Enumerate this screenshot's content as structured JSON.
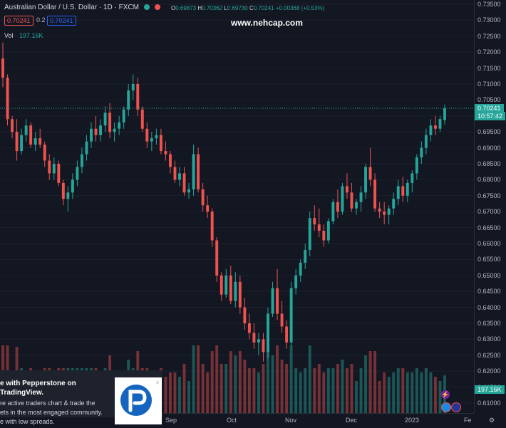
{
  "header": {
    "title": "Australian Dollar / U.S. Dollar · 1D · FXCM",
    "ohlc": {
      "O": "0.69873",
      "H": "0.70362",
      "L": "0.69730",
      "C": "0.70241",
      "change": "+0.00368 (+0.53%)"
    },
    "sell_price": "0.70241",
    "spread": "0.2",
    "buy_price": "0.70241"
  },
  "volume_legend": {
    "label": "Vol",
    "value": "197.16K"
  },
  "watermark": "www.nehcap.com",
  "price_axis": {
    "ticks": [
      "0.73500",
      "0.73000",
      "0.72500",
      "0.72000",
      "0.71500",
      "0.71000",
      "0.70500",
      "0.70000",
      "0.69500",
      "0.69000",
      "0.68500",
      "0.68000",
      "0.67500",
      "0.67000",
      "0.66500",
      "0.66000",
      "0.65500",
      "0.65000",
      "0.64500",
      "0.64000",
      "0.63500",
      "0.63000",
      "0.62500",
      "0.62000",
      "0.61500",
      "0.61000"
    ],
    "current_price_tag": "0.70241",
    "countdown_tag": "10:57:42",
    "volume_tag": "197.16K"
  },
  "time_axis": {
    "labels": [
      "Sep",
      "Oct",
      "Nov",
      "Dec",
      "2023",
      "Fe"
    ]
  },
  "promo": {
    "headline": "e with Pepperstone on TradingView.",
    "line1": "re active traders chart & trade the",
    "line2": "ets in the most engaged community.",
    "line3": "e with low spreads.",
    "close": "×"
  },
  "colors": {
    "up": "#26a69a",
    "down": "#ef5350",
    "background": "#131722",
    "accent": "#2962ff"
  },
  "chart_data": {
    "type": "candlestick",
    "symbol": "AUDUSD",
    "interval": "1D",
    "ylim": [
      0.61,
      0.735
    ],
    "x_labels": [
      "Sep",
      "Oct",
      "Nov",
      "Dec",
      "2023",
      "Fe"
    ],
    "candles": [
      [
        0.718,
        0.723,
        0.709,
        0.712
      ],
      [
        0.712,
        0.713,
        0.697,
        0.699
      ],
      [
        0.699,
        0.7,
        0.693,
        0.695
      ],
      [
        0.695,
        0.699,
        0.686,
        0.689
      ],
      [
        0.689,
        0.696,
        0.688,
        0.694
      ],
      [
        0.694,
        0.699,
        0.692,
        0.697
      ],
      [
        0.697,
        0.698,
        0.69,
        0.691
      ],
      [
        0.691,
        0.695,
        0.689,
        0.693
      ],
      [
        0.693,
        0.696,
        0.69,
        0.691
      ],
      [
        0.691,
        0.692,
        0.684,
        0.686
      ],
      [
        0.686,
        0.688,
        0.68,
        0.682
      ],
      [
        0.682,
        0.687,
        0.68,
        0.685
      ],
      [
        0.685,
        0.686,
        0.678,
        0.679
      ],
      [
        0.679,
        0.68,
        0.672,
        0.674
      ],
      [
        0.674,
        0.678,
        0.67,
        0.676
      ],
      [
        0.676,
        0.682,
        0.674,
        0.68
      ],
      [
        0.68,
        0.686,
        0.678,
        0.684
      ],
      [
        0.684,
        0.69,
        0.682,
        0.688
      ],
      [
        0.688,
        0.694,
        0.686,
        0.692
      ],
      [
        0.692,
        0.698,
        0.69,
        0.696
      ],
      [
        0.696,
        0.7,
        0.692,
        0.694
      ],
      [
        0.694,
        0.699,
        0.692,
        0.697
      ],
      [
        0.697,
        0.703,
        0.695,
        0.701
      ],
      [
        0.701,
        0.704,
        0.693,
        0.695
      ],
      [
        0.695,
        0.698,
        0.692,
        0.696
      ],
      [
        0.696,
        0.7,
        0.694,
        0.698
      ],
      [
        0.698,
        0.703,
        0.696,
        0.702
      ],
      [
        0.702,
        0.71,
        0.7,
        0.708
      ],
      [
        0.708,
        0.713,
        0.705,
        0.71
      ],
      [
        0.71,
        0.712,
        0.7,
        0.702
      ],
      [
        0.702,
        0.703,
        0.695,
        0.696
      ],
      [
        0.696,
        0.698,
        0.69,
        0.692
      ],
      [
        0.692,
        0.695,
        0.689,
        0.693
      ],
      [
        0.693,
        0.696,
        0.691,
        0.694
      ],
      [
        0.694,
        0.696,
        0.688,
        0.689
      ],
      [
        0.689,
        0.692,
        0.686,
        0.688
      ],
      [
        0.688,
        0.689,
        0.682,
        0.684
      ],
      [
        0.684,
        0.686,
        0.679,
        0.68
      ],
      [
        0.68,
        0.684,
        0.678,
        0.682
      ],
      [
        0.682,
        0.684,
        0.675,
        0.676
      ],
      [
        0.676,
        0.679,
        0.674,
        0.677
      ],
      [
        0.677,
        0.691,
        0.675,
        0.688
      ],
      [
        0.688,
        0.69,
        0.676,
        0.677
      ],
      [
        0.677,
        0.679,
        0.67,
        0.672
      ],
      [
        0.672,
        0.675,
        0.668,
        0.67
      ],
      [
        0.67,
        0.671,
        0.659,
        0.661
      ],
      [
        0.661,
        0.662,
        0.648,
        0.65
      ],
      [
        0.65,
        0.651,
        0.642,
        0.644
      ],
      [
        0.644,
        0.652,
        0.643,
        0.65
      ],
      [
        0.65,
        0.653,
        0.641,
        0.642
      ],
      [
        0.642,
        0.651,
        0.64,
        0.648
      ],
      [
        0.648,
        0.65,
        0.638,
        0.64
      ],
      [
        0.64,
        0.643,
        0.633,
        0.635
      ],
      [
        0.635,
        0.638,
        0.63,
        0.632
      ],
      [
        0.632,
        0.635,
        0.627,
        0.629
      ],
      [
        0.629,
        0.632,
        0.625,
        0.63
      ],
      [
        0.63,
        0.632,
        0.623,
        0.626
      ],
      [
        0.626,
        0.64,
        0.624,
        0.638
      ],
      [
        0.638,
        0.648,
        0.637,
        0.646
      ],
      [
        0.646,
        0.652,
        0.636,
        0.638
      ],
      [
        0.638,
        0.642,
        0.632,
        0.634
      ],
      [
        0.634,
        0.636,
        0.627,
        0.629
      ],
      [
        0.629,
        0.648,
        0.628,
        0.646
      ],
      [
        0.646,
        0.652,
        0.644,
        0.65
      ],
      [
        0.65,
        0.655,
        0.648,
        0.654
      ],
      [
        0.654,
        0.66,
        0.652,
        0.658
      ],
      [
        0.658,
        0.67,
        0.656,
        0.668
      ],
      [
        0.668,
        0.672,
        0.664,
        0.666
      ],
      [
        0.666,
        0.671,
        0.662,
        0.664
      ],
      [
        0.664,
        0.666,
        0.659,
        0.661
      ],
      [
        0.661,
        0.668,
        0.66,
        0.667
      ],
      [
        0.667,
        0.674,
        0.666,
        0.673
      ],
      [
        0.673,
        0.677,
        0.668,
        0.67
      ],
      [
        0.67,
        0.679,
        0.669,
        0.678
      ],
      [
        0.678,
        0.682,
        0.674,
        0.676
      ],
      [
        0.676,
        0.679,
        0.67,
        0.671
      ],
      [
        0.671,
        0.674,
        0.669,
        0.673
      ],
      [
        0.673,
        0.678,
        0.67,
        0.676
      ],
      [
        0.676,
        0.685,
        0.674,
        0.684
      ],
      [
        0.684,
        0.69,
        0.678,
        0.68
      ],
      [
        0.68,
        0.682,
        0.67,
        0.671
      ],
      [
        0.671,
        0.673,
        0.668,
        0.67
      ],
      [
        0.67,
        0.673,
        0.666,
        0.669
      ],
      [
        0.669,
        0.672,
        0.666,
        0.671
      ],
      [
        0.671,
        0.676,
        0.669,
        0.674
      ],
      [
        0.674,
        0.68,
        0.672,
        0.678
      ],
      [
        0.678,
        0.681,
        0.673,
        0.675
      ],
      [
        0.675,
        0.68,
        0.673,
        0.679
      ],
      [
        0.679,
        0.683,
        0.676,
        0.682
      ],
      [
        0.682,
        0.688,
        0.68,
        0.687
      ],
      [
        0.687,
        0.692,
        0.685,
        0.69
      ],
      [
        0.69,
        0.696,
        0.688,
        0.694
      ],
      [
        0.694,
        0.699,
        0.692,
        0.697
      ],
      [
        0.697,
        0.7,
        0.694,
        0.696
      ],
      [
        0.696,
        0.7,
        0.695,
        0.699
      ],
      [
        0.6987,
        0.7036,
        0.6973,
        0.7024
      ]
    ]
  }
}
